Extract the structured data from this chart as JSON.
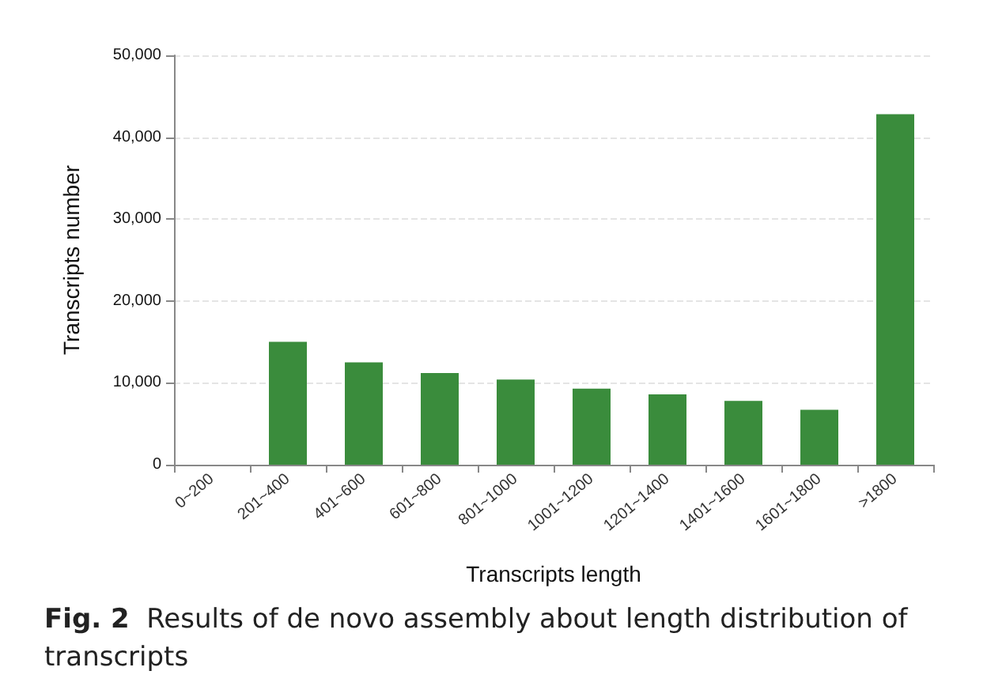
{
  "chart_data": {
    "type": "bar",
    "xlabel": "Transcripts length",
    "ylabel": "Transcripts number",
    "categories": [
      "0~200",
      "201~400",
      "401~600",
      "601~800",
      "801~1000",
      "1001~1200",
      "1201~1400",
      "1401~1600",
      "1601~1800",
      ">1800"
    ],
    "values": [
      0,
      15000,
      12500,
      11200,
      10400,
      9300,
      8600,
      7800,
      6700,
      42800
    ],
    "color": "#3a8c3c",
    "ylim": [
      0,
      50000
    ],
    "yticks": [
      {
        "value": 0,
        "label": "0"
      },
      {
        "value": 10000,
        "label": "10,000"
      },
      {
        "value": 20000,
        "label": "20,000"
      },
      {
        "value": 30000,
        "label": "30,000"
      },
      {
        "value": 40000,
        "label": "40,000"
      },
      {
        "value": 50000,
        "label": "50,000"
      }
    ],
    "grid": "y",
    "annotations": [
      "Fig. 2  Results of de novo assembly about length distribution of transcripts"
    ]
  }
}
